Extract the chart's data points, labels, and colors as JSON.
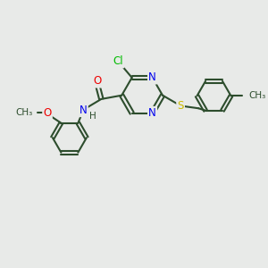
{
  "background_color": "#e8eae8",
  "bond_color": "#2d4d2d",
  "bond_width": 1.5,
  "atom_colors": {
    "C": "#2d4d2d",
    "N": "#0000ee",
    "O": "#ee0000",
    "S": "#ccbb00",
    "Cl": "#00bb00",
    "H": "#2d4d2d"
  },
  "fs": 8.5
}
